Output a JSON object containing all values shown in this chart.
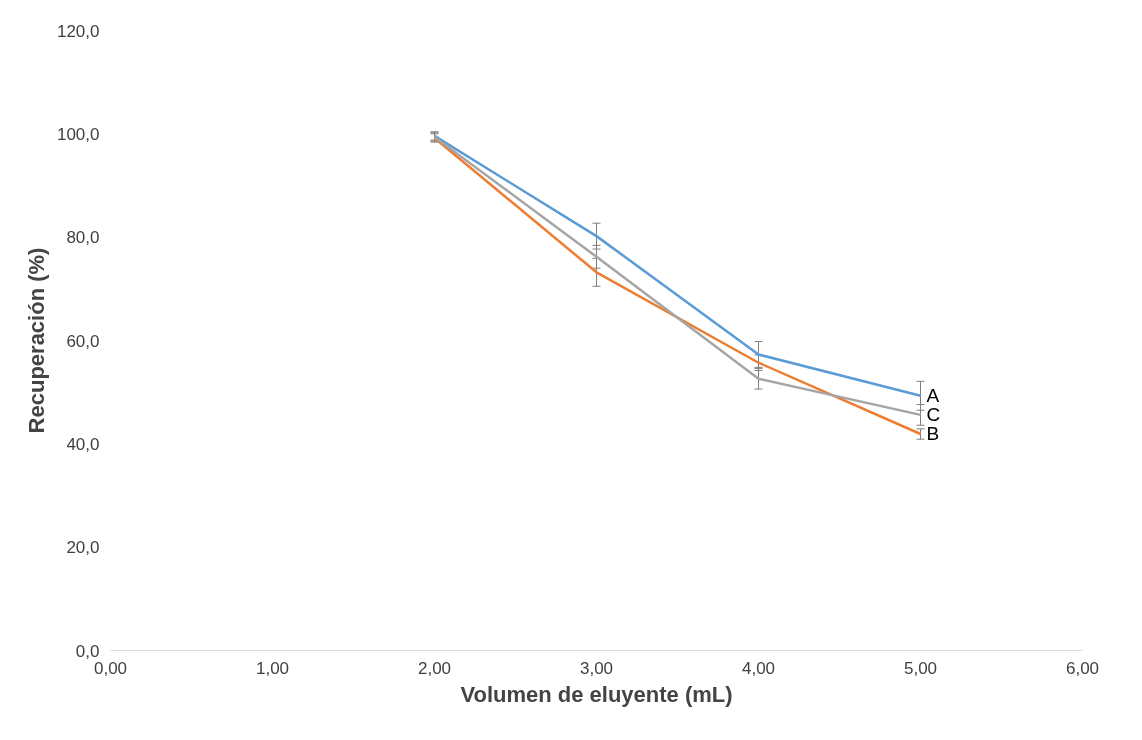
{
  "chart_data": {
    "type": "line",
    "xlabel": "Volumen de eluyente (mL)",
    "ylabel": "Recuperación (%)",
    "x": [
      2,
      3,
      4,
      5
    ],
    "series": [
      {
        "name": "A",
        "color": "#5b9bd5",
        "values": [
          99.6,
          80.2,
          57.3,
          49.3
        ],
        "errors": [
          0.8,
          2.5,
          2.5,
          2.8
        ]
      },
      {
        "name": "B",
        "color": "#ed7d31",
        "values": [
          99.2,
          73.2,
          55.7,
          41.9
        ],
        "errors": [
          0.8,
          2.7,
          1.5,
          1.0
        ]
      },
      {
        "name": "C",
        "color": "#a5a5a5",
        "values": [
          99.4,
          76.2,
          52.6,
          45.6
        ],
        "errors": [
          0.8,
          2.2,
          2.0,
          2.0
        ]
      }
    ],
    "xlim": [
      0,
      6
    ],
    "ylim": [
      0,
      120
    ],
    "xticks": [
      {
        "value": 0,
        "label": "0,00"
      },
      {
        "value": 1,
        "label": "1,00"
      },
      {
        "value": 2,
        "label": "2,00"
      },
      {
        "value": 3,
        "label": "3,00"
      },
      {
        "value": 4,
        "label": "4,00"
      },
      {
        "value": 5,
        "label": "5,00"
      },
      {
        "value": 6,
        "label": "6,00"
      }
    ],
    "yticks": [
      {
        "value": 0,
        "label": "0,0"
      },
      {
        "value": 20,
        "label": "20,0"
      },
      {
        "value": 40,
        "label": "40,0"
      },
      {
        "value": 60,
        "label": "60,0"
      },
      {
        "value": 80,
        "label": "80,0"
      },
      {
        "value": 100,
        "label": "100,0"
      },
      {
        "value": 120,
        "label": "120,0"
      }
    ],
    "grid": false,
    "marker": "none",
    "line_style": "solid"
  }
}
